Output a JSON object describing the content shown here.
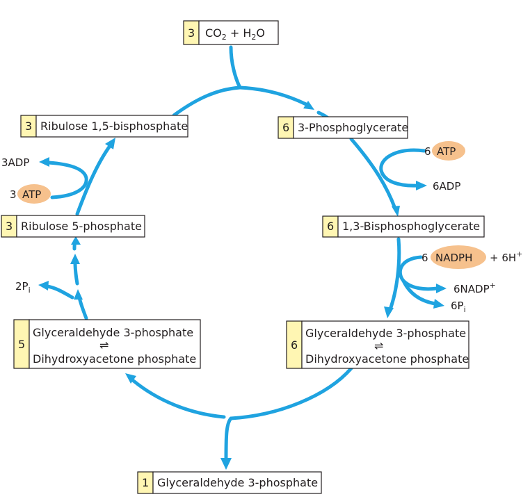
{
  "compounds": {
    "co2_h2o": {
      "count": "3",
      "co": "CO",
      "sub2": "2",
      "plus_h": " + H",
      "sub2b": "2",
      "o": "O"
    },
    "pga": {
      "count": "6",
      "label": "3-Phosphoglycerate"
    },
    "bpg": {
      "count": "6",
      "label": "1,3-Bisphosphoglycerate"
    },
    "triose_right": {
      "count": "6",
      "line1": "Glyceraldehyde 3-phosphate",
      "eq": "⇌",
      "line2": "Dihydroxyacetone phosphate"
    },
    "g3p_out": {
      "count": "1",
      "label": "Glyceraldehyde 3-phosphate"
    },
    "triose_left": {
      "count": "5",
      "line1": "Glyceraldehyde 3-phosphate",
      "eq": "⇌",
      "line2": "Dihydroxyacetone phosphate"
    },
    "ru5p": {
      "count": "3",
      "label": "Ribulose 5-phosphate"
    },
    "rubp": {
      "count": "3",
      "label": "Ribulose 1,5-bisphosphate"
    }
  },
  "cofactors": {
    "atp_right": {
      "count": "6",
      "name": "ATP"
    },
    "adp_right": "6ADP",
    "nadph": {
      "count": "6",
      "name": "NADPH",
      "plus": "+ 6H",
      "sup": "+"
    },
    "nadp": {
      "text": "6NADP",
      "sup": "+"
    },
    "pi_right": {
      "text": "6P",
      "sub": "i"
    },
    "atp_left": {
      "count": "3",
      "name": "ATP"
    },
    "adp_left": "3ADP",
    "pi_left": {
      "text": "2P",
      "sub": "i"
    }
  },
  "colors": {
    "arrow": "#1fa3e0",
    "count_fill": "#fff6b3",
    "cofactor_oval": "#f6c18d"
  }
}
